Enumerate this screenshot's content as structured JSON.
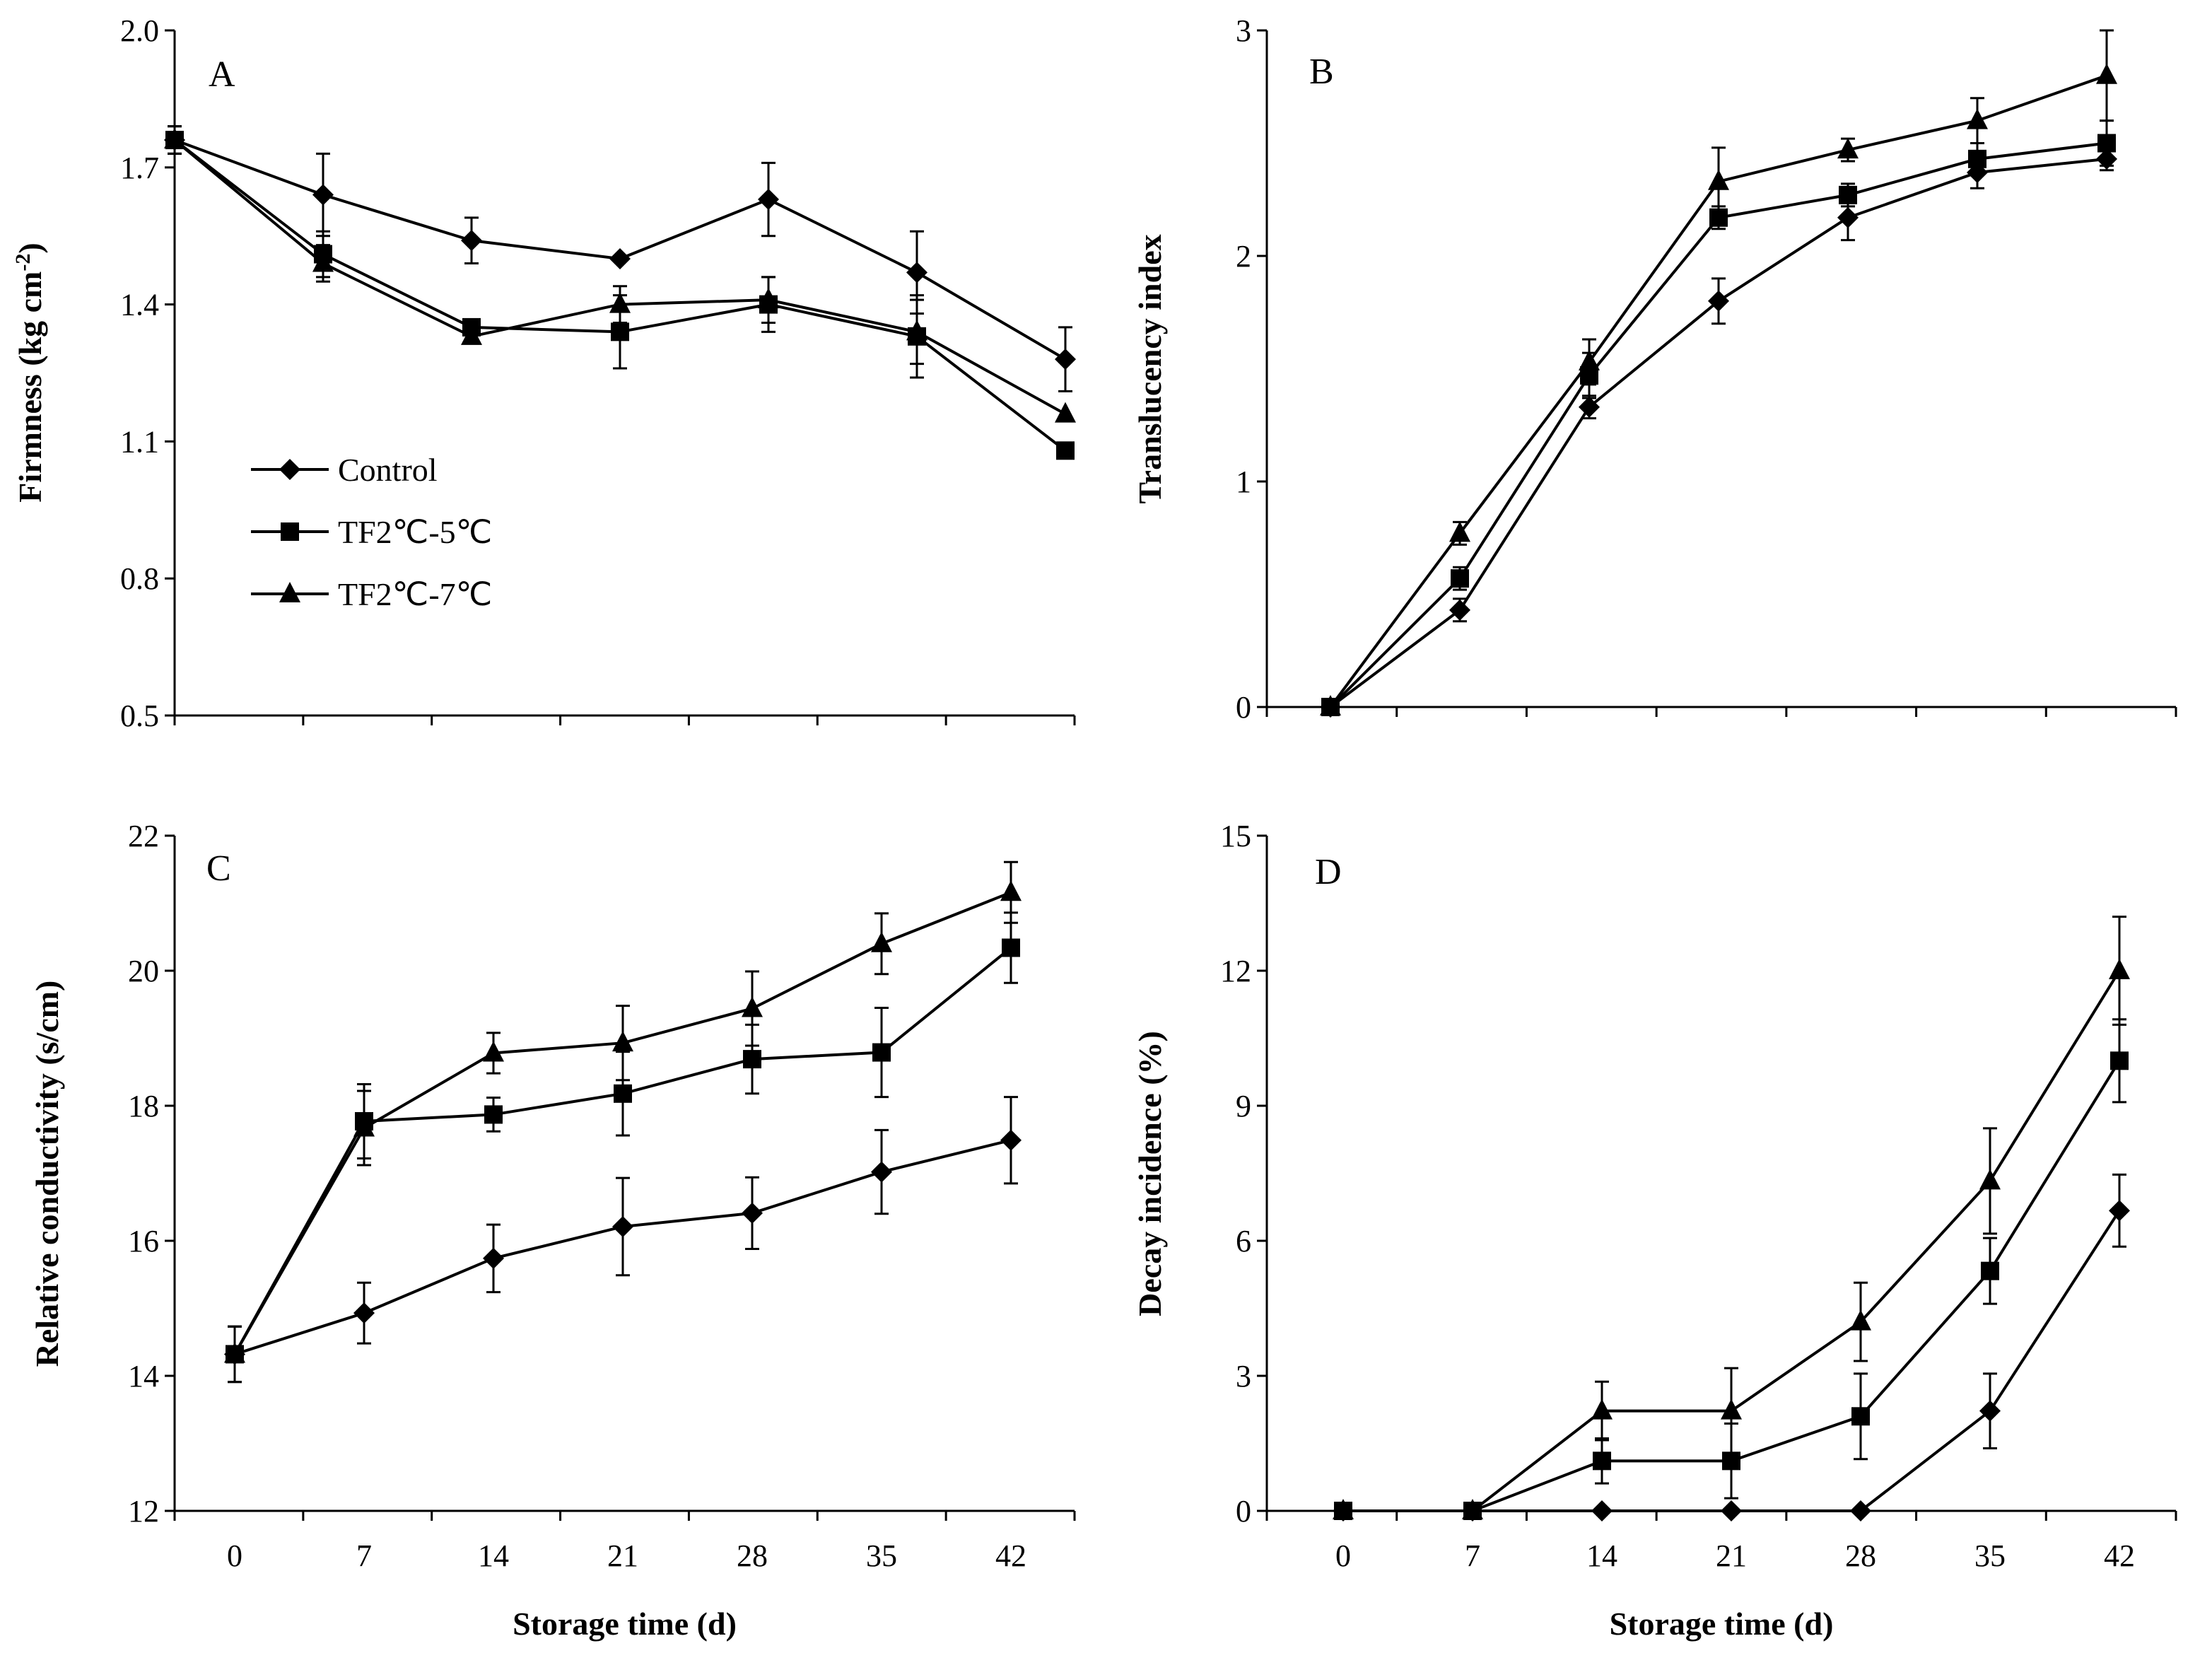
{
  "chart_data": [
    {
      "type": "line",
      "panel_label": "A",
      "xlabel": "",
      "ylabel": "Firmness (kg cm",
      "ylabel_sup": "-2",
      "ylabel_end": ")",
      "ylim": [
        0.5,
        2.0
      ],
      "yticks": [
        "0.5",
        "0.8",
        "1.1",
        "1.4",
        "1.7",
        "2.0"
      ],
      "x": [
        0,
        7,
        14,
        21,
        28,
        35,
        42
      ],
      "xticks": [],
      "series": [
        {
          "name": "Control",
          "marker": "diamond",
          "values": [
            1.76,
            1.64,
            1.54,
            1.5,
            1.63,
            1.47,
            1.28
          ],
          "errors": [
            0.03,
            0.09,
            0.05,
            0.0,
            0.08,
            0.09,
            0.07
          ]
        },
        {
          "name": "TF2℃-5℃",
          "marker": "square",
          "values": [
            1.76,
            1.51,
            1.35,
            1.34,
            1.4,
            1.33,
            1.08
          ],
          "errors": [
            0.03,
            0.05,
            0.0,
            0.08,
            0.06,
            0.09,
            0.01
          ]
        },
        {
          "name": "TF2℃-7℃",
          "marker": "triangle",
          "values": [
            1.76,
            1.49,
            1.33,
            1.4,
            1.41,
            1.34,
            1.16
          ],
          "errors": [
            0.03,
            0.04,
            0.01,
            0.04,
            0.05,
            0.07,
            0.0
          ]
        }
      ],
      "legend": [
        "Control",
        "TF2℃-5℃",
        "TF2℃-7℃"
      ],
      "legend_position": "center-left"
    },
    {
      "type": "line",
      "panel_label": "B",
      "xlabel": "",
      "ylabel": "Translucency index",
      "ylim": [
        0,
        3
      ],
      "yticks": [
        "0",
        "1",
        "2",
        "3"
      ],
      "x": [
        0,
        7,
        14,
        21,
        28,
        35,
        42
      ],
      "xticks": [],
      "series": [
        {
          "name": "Control",
          "marker": "diamond",
          "values": [
            0,
            0.43,
            1.33,
            1.8,
            2.17,
            2.37,
            2.43
          ],
          "errors": [
            0,
            0.05,
            0.05,
            0.1,
            0.1,
            0.07,
            0.05
          ]
        },
        {
          "name": "TF2℃-5℃",
          "marker": "square",
          "values": [
            0,
            0.57,
            1.47,
            2.17,
            2.27,
            2.43,
            2.5
          ],
          "errors": [
            0,
            0.05,
            0.1,
            0.05,
            0.05,
            0.07,
            0.1
          ]
        },
        {
          "name": "TF2℃-7℃",
          "marker": "triangle",
          "values": [
            0,
            0.77,
            1.53,
            2.33,
            2.47,
            2.6,
            2.8
          ],
          "errors": [
            0,
            0.05,
            0.1,
            0.15,
            0.05,
            0.1,
            0.2
          ]
        }
      ]
    },
    {
      "type": "line",
      "panel_label": "C",
      "xlabel": "Storage time (d)",
      "ylabel": "Relative conductivity (s/cm)",
      "ylim": [
        12,
        22
      ],
      "yticks": [
        "12",
        "14",
        "16",
        "18",
        "20",
        "22"
      ],
      "x": [
        0,
        7,
        14,
        21,
        28,
        35,
        42
      ],
      "xticks": [
        "0",
        "7",
        "14",
        "21",
        "28",
        "35",
        "42"
      ],
      "series": [
        {
          "name": "Control",
          "marker": "diamond",
          "values": [
            14.32,
            14.93,
            15.74,
            16.21,
            16.41,
            17.02,
            17.49
          ],
          "errors": [
            0.41,
            0.45,
            0.5,
            0.72,
            0.53,
            0.62,
            0.64
          ]
        },
        {
          "name": "TF2℃-5℃",
          "marker": "square",
          "values": [
            14.32,
            17.77,
            17.87,
            18.18,
            18.69,
            18.79,
            20.34
          ],
          "errors": [
            0.41,
            0.55,
            0.25,
            0.62,
            0.51,
            0.66,
            0.52
          ]
        },
        {
          "name": "TF2℃-7℃",
          "marker": "triangle",
          "values": [
            14.32,
            17.67,
            18.78,
            18.93,
            19.44,
            20.4,
            21.16
          ],
          "errors": [
            0.41,
            0.55,
            0.3,
            0.55,
            0.55,
            0.45,
            0.45
          ]
        }
      ]
    },
    {
      "type": "line",
      "panel_label": "D",
      "xlabel": "Storage time (d)",
      "ylabel": "Decay incidence (%)",
      "ylim": [
        0,
        15
      ],
      "yticks": [
        "0",
        "3",
        "6",
        "9",
        "12",
        "15"
      ],
      "x": [
        0,
        7,
        14,
        21,
        28,
        35,
        42
      ],
      "xticks": [
        "0",
        "7",
        "14",
        "21",
        "28",
        "35",
        "42"
      ],
      "series": [
        {
          "name": "Control",
          "marker": "diamond",
          "values": [
            0,
            0,
            0,
            0,
            0,
            2.22,
            6.67
          ],
          "errors": [
            0,
            0,
            0,
            0,
            0,
            0.83,
            0.8
          ]
        },
        {
          "name": "TF2℃-5℃",
          "marker": "square",
          "values": [
            0,
            0,
            1.11,
            1.11,
            2.1,
            5.33,
            10.0
          ],
          "errors": [
            0,
            0,
            0.5,
            0.83,
            0.95,
            0.73,
            0.92
          ]
        },
        {
          "name": "TF2℃-7℃",
          "marker": "triangle",
          "values": [
            0,
            0,
            2.22,
            2.22,
            4.2,
            7.33,
            12.0
          ],
          "errors": [
            0,
            0,
            0.65,
            0.95,
            0.87,
            1.17,
            1.2
          ]
        }
      ]
    }
  ]
}
